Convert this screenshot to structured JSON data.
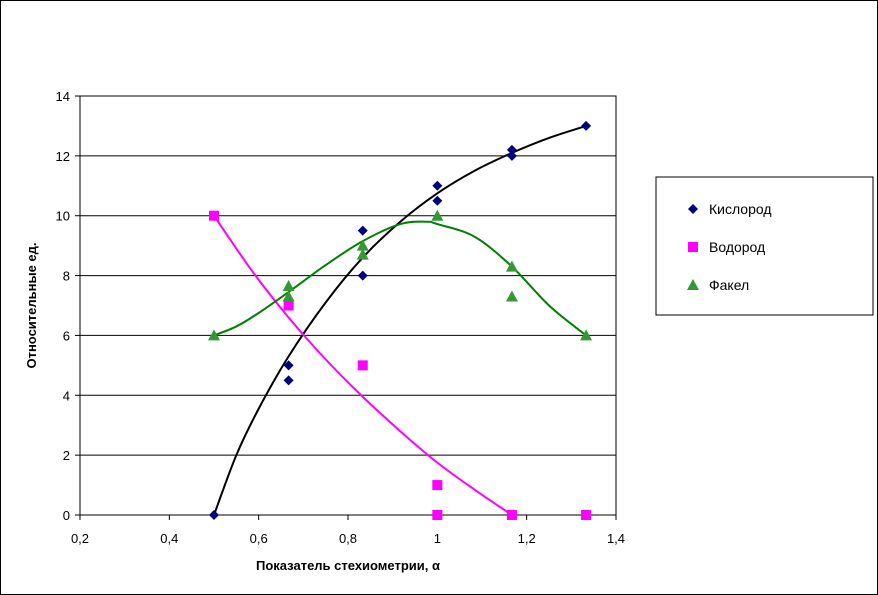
{
  "chart_data": {
    "type": "scatter",
    "xlabel": "Показатель стехиометрии, α",
    "ylabel": "Относительные ед.",
    "xlim": [
      0.2,
      1.4
    ],
    "ylim": [
      0,
      14
    ],
    "x_ticks": [
      "0,2",
      "0,4",
      "0,6",
      "0,8",
      "1",
      "1,2",
      "1,4"
    ],
    "y_ticks": [
      "0",
      "2",
      "4",
      "6",
      "8",
      "10",
      "12",
      "14"
    ],
    "grid": "horizontal",
    "legend_position": "right",
    "series": [
      {
        "name": "Кислород",
        "color": "#000080",
        "marker": "diamond",
        "trend_color": "#000000",
        "points": [
          [
            0.5,
            0
          ],
          [
            0.667,
            5
          ],
          [
            0.667,
            4.5
          ],
          [
            0.833,
            9.5
          ],
          [
            0.833,
            8
          ],
          [
            1.0,
            11
          ],
          [
            1.0,
            10.5
          ],
          [
            1.167,
            12.2
          ],
          [
            1.167,
            12
          ],
          [
            1.333,
            13
          ]
        ],
        "trend": [
          [
            0.5,
            0
          ],
          [
            0.55,
            2.0
          ],
          [
            0.6,
            3.55
          ],
          [
            0.667,
            5.3
          ],
          [
            0.75,
            7.1
          ],
          [
            0.833,
            8.6
          ],
          [
            0.917,
            9.8
          ],
          [
            1.0,
            10.75
          ],
          [
            1.083,
            11.5
          ],
          [
            1.167,
            12.1
          ],
          [
            1.25,
            12.6
          ],
          [
            1.333,
            13
          ]
        ]
      },
      {
        "name": "Водород",
        "color": "#ff00ff",
        "marker": "square",
        "trend_color": "#ff00ff",
        "points": [
          [
            0.5,
            10
          ],
          [
            0.667,
            7
          ],
          [
            0.833,
            5
          ],
          [
            1.0,
            1
          ],
          [
            1.0,
            0
          ],
          [
            1.167,
            0
          ],
          [
            1.333,
            0
          ]
        ],
        "trend": [
          [
            0.5,
            10
          ],
          [
            0.583,
            8.2
          ],
          [
            0.667,
            6.6
          ],
          [
            0.75,
            5.2
          ],
          [
            0.833,
            3.95
          ],
          [
            0.917,
            2.8
          ],
          [
            1.0,
            1.75
          ],
          [
            1.083,
            0.85
          ],
          [
            1.167,
            0
          ]
        ]
      },
      {
        "name": "Факел",
        "color": "#339933",
        "marker": "triangle",
        "trend_color": "#008000",
        "points": [
          [
            0.5,
            6
          ],
          [
            0.667,
            7.65
          ],
          [
            0.667,
            7.3
          ],
          [
            0.833,
            9
          ],
          [
            0.833,
            8.7
          ],
          [
            1.0,
            10
          ],
          [
            1.167,
            8.3
          ],
          [
            1.167,
            7.3
          ],
          [
            1.333,
            6
          ]
        ],
        "trend": [
          [
            0.5,
            6
          ],
          [
            0.55,
            6.3
          ],
          [
            0.6,
            6.75
          ],
          [
            0.667,
            7.45
          ],
          [
            0.75,
            8.35
          ],
          [
            0.833,
            9.15
          ],
          [
            0.917,
            9.72
          ],
          [
            0.975,
            9.8
          ],
          [
            1.0,
            9.72
          ],
          [
            1.083,
            9.3
          ],
          [
            1.167,
            8.3
          ],
          [
            1.25,
            7.0
          ],
          [
            1.333,
            6
          ]
        ]
      }
    ]
  }
}
